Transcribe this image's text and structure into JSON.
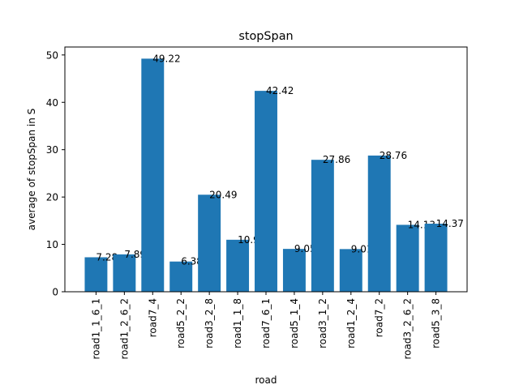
{
  "chart_data": {
    "type": "bar",
    "title": "stopSpan",
    "xlabel": "road",
    "ylabel": "average of stopSpan in S",
    "categories": [
      "road1_1_6_1",
      "road1_2_6_2",
      "road7_4",
      "road5_2_2",
      "road3_2_8",
      "road1_1_8",
      "road7_6_1",
      "road5_1_4",
      "road3_1_2",
      "road1_2_4",
      "road7_2",
      "road3_2_6_2",
      "road5_3_8"
    ],
    "values": [
      7.28,
      7.89,
      49.22,
      6.38,
      20.49,
      10.98,
      42.42,
      9.05,
      27.86,
      9.01,
      28.76,
      14.13,
      14.37
    ],
    "data_labels": [
      "7.28",
      "7.89",
      "49.22",
      "6.38",
      "20.49",
      "10.98",
      "42.42",
      "9.05",
      "27.86",
      "9.01",
      "28.76",
      "14.13",
      "14.37"
    ],
    "ylim": [
      0,
      51.681
    ],
    "yticks": [
      0,
      10,
      20,
      30,
      40,
      50
    ],
    "ytick_labels": [
      "0",
      "10",
      "20",
      "30",
      "40",
      "50"
    ],
    "bar_color": "#1f77b4",
    "grid": false,
    "legend": "none"
  }
}
